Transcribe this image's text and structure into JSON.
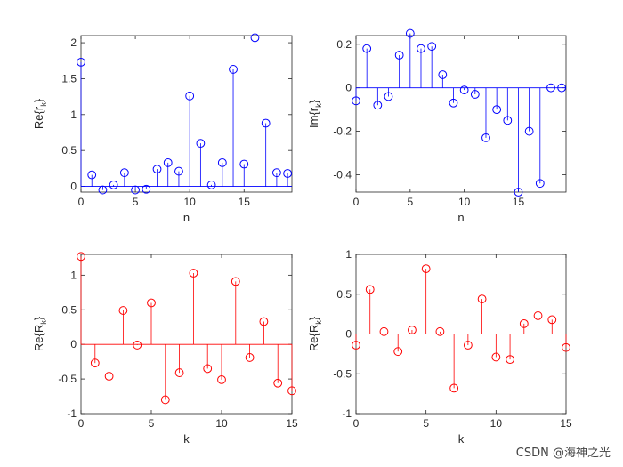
{
  "watermark": "CSDN @海神之光",
  "chart_data": [
    {
      "type": "stem",
      "color": "#0000ff",
      "xlabel": "n",
      "ylabel_base": "Re{r",
      "ylabel_sub": "k",
      "ylabel_end": "}",
      "xlim": [
        0,
        19.4
      ],
      "ylim": [
        -0.08,
        2.1
      ],
      "xticks": [
        0,
        5,
        10,
        15
      ],
      "yticks": [
        0,
        0.5,
        1,
        1.5,
        2
      ],
      "x": [
        0,
        1,
        2,
        3,
        4,
        5,
        6,
        7,
        8,
        9,
        10,
        11,
        12,
        13,
        14,
        15,
        16,
        17,
        18,
        19
      ],
      "values": [
        1.73,
        0.16,
        -0.05,
        0.02,
        0.19,
        -0.05,
        -0.04,
        0.24,
        0.33,
        0.21,
        1.26,
        0.6,
        0.02,
        0.33,
        1.63,
        0.31,
        2.07,
        0.88,
        0.19,
        0.18
      ]
    },
    {
      "type": "stem",
      "color": "#0000ff",
      "xlabel": "n",
      "ylabel_base": "Im{r",
      "ylabel_sub": "k",
      "ylabel_end": "}",
      "xlim": [
        0,
        19.4
      ],
      "ylim": [
        -0.48,
        0.24
      ],
      "xticks": [
        0,
        5,
        10,
        15
      ],
      "yticks": [
        -0.4,
        -0.2,
        0,
        0.2
      ],
      "x": [
        0,
        1,
        2,
        3,
        4,
        5,
        6,
        7,
        8,
        9,
        10,
        11,
        12,
        13,
        14,
        15,
        16,
        17,
        18,
        19
      ],
      "values": [
        -0.06,
        0.18,
        -0.08,
        -0.04,
        0.15,
        0.25,
        0.18,
        0.19,
        0.06,
        -0.07,
        -0.01,
        -0.03,
        -0.23,
        -0.1,
        -0.15,
        -0.48,
        -0.2,
        -0.44,
        0.0,
        0.0
      ]
    },
    {
      "type": "stem",
      "color": "#ff0000",
      "xlabel": "k",
      "ylabel_base": "Re{R",
      "ylabel_sub": "k",
      "ylabel_end": "}",
      "xlim": [
        0,
        15
      ],
      "ylim": [
        -1,
        1.3
      ],
      "xticks": [
        0,
        5,
        10,
        15
      ],
      "yticks": [
        -1,
        -0.5,
        0,
        0.5,
        1
      ],
      "x": [
        0,
        1,
        2,
        3,
        4,
        5,
        6,
        7,
        8,
        9,
        10,
        11,
        12,
        13,
        14,
        15
      ],
      "values": [
        1.27,
        -0.27,
        -0.46,
        0.49,
        -0.01,
        0.6,
        -0.8,
        -0.41,
        1.03,
        -0.35,
        -0.51,
        0.91,
        -0.19,
        0.33,
        -0.56,
        -0.67
      ]
    },
    {
      "type": "stem",
      "color": "#ff0000",
      "xlabel": "k",
      "ylabel_base": "Re{R",
      "ylabel_sub": "k",
      "ylabel_end": "}",
      "xlim": [
        0,
        15
      ],
      "ylim": [
        -1,
        1
      ],
      "xticks": [
        0,
        5,
        10,
        15
      ],
      "yticks": [
        -1,
        -0.5,
        0,
        0.5,
        1
      ],
      "x": [
        0,
        1,
        2,
        3,
        4,
        5,
        6,
        7,
        8,
        9,
        10,
        11,
        12,
        13,
        14,
        15
      ],
      "values": [
        -0.14,
        0.56,
        0.03,
        -0.22,
        0.05,
        0.82,
        0.03,
        -0.68,
        -0.14,
        0.44,
        -0.29,
        -0.32,
        0.13,
        0.23,
        0.18,
        -0.17
      ]
    }
  ]
}
